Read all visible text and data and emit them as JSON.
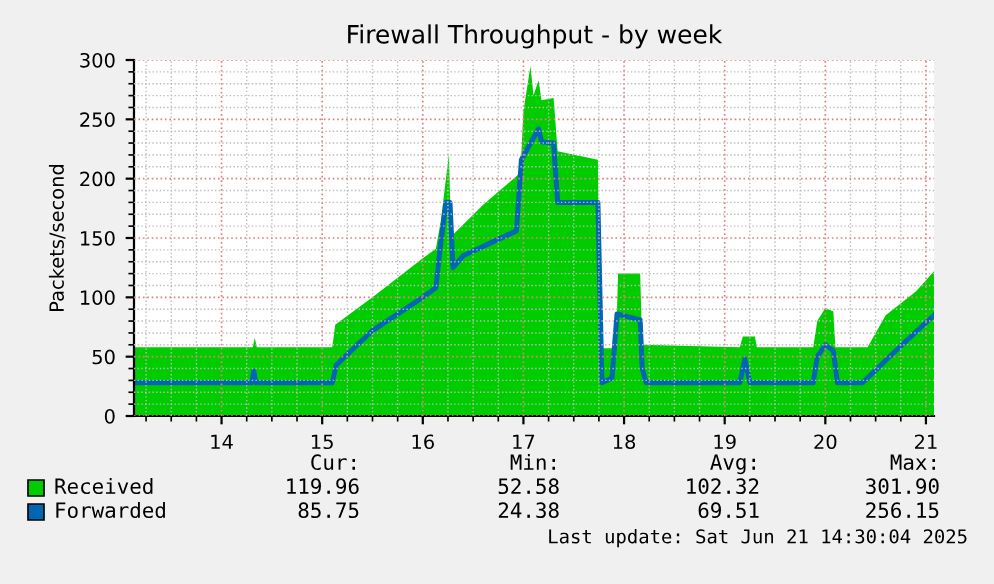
{
  "chart_data": {
    "type": "area",
    "title": "Firewall Throughput - by week",
    "ylabel": "Packets/second",
    "xlim": [
      13.13,
      21.08
    ],
    "xticks": [
      14,
      15,
      16,
      17,
      18,
      19,
      20,
      21
    ],
    "ylim": [
      0,
      300
    ],
    "yticks": [
      0,
      50,
      100,
      150,
      200,
      250,
      300
    ],
    "grid": true,
    "legend": "bottom",
    "series": [
      {
        "name": "Received",
        "color": "#00cc00",
        "x": [
          13.13,
          14.0,
          14.31,
          14.33,
          14.35,
          15.1,
          15.13,
          15.5,
          16.0,
          16.13,
          16.18,
          16.26,
          16.28,
          16.6,
          16.93,
          16.97,
          17.0,
          17.07,
          17.1,
          17.15,
          17.18,
          17.3,
          17.34,
          17.74,
          17.76,
          17.92,
          17.94,
          18.16,
          18.18,
          19.15,
          19.18,
          19.3,
          19.32,
          19.88,
          19.92,
          20.0,
          20.08,
          20.1,
          20.42,
          20.6,
          20.9,
          21.08
        ],
        "values": [
          58,
          58,
          58,
          66,
          58,
          58,
          77,
          100,
          133,
          141,
          165,
          221,
          151,
          178,
          202,
          205,
          257,
          295,
          270,
          283,
          266,
          268,
          223,
          216,
          57,
          57,
          120,
          120,
          60,
          58,
          67,
          67,
          58,
          58,
          80,
          91,
          88,
          58,
          58,
          85,
          105,
          122
        ]
      },
      {
        "name": "Forwarded",
        "color": "#0066b3",
        "type": "line",
        "x": [
          13.13,
          14.3,
          14.32,
          14.34,
          15.1,
          15.14,
          15.5,
          16.0,
          16.13,
          16.17,
          16.23,
          16.27,
          16.3,
          16.4,
          16.93,
          16.98,
          17.15,
          17.18,
          17.3,
          17.34,
          17.74,
          17.78,
          17.88,
          17.93,
          18.16,
          18.18,
          18.22,
          19.15,
          19.2,
          19.25,
          19.88,
          19.92,
          20.0,
          20.08,
          20.12,
          20.37,
          20.7,
          21.08
        ],
        "values": [
          28,
          28,
          38,
          28,
          28,
          43,
          72,
          100,
          108,
          140,
          180,
          180,
          125,
          135,
          156,
          216,
          242,
          231,
          230,
          180,
          180,
          28,
          32,
          86,
          81,
          40,
          28,
          28,
          48,
          28,
          28,
          50,
          60,
          55,
          28,
          28,
          55,
          85
        ]
      }
    ],
    "annotations": [
      "Cur:",
      "Min:",
      "Avg:",
      "Max:",
      "119.96",
      "52.58",
      "102.32",
      "301.90",
      "85.75",
      "24.38",
      "69.51",
      "256.15",
      "Last update: Sat Jun 21 14:30:04 2025"
    ]
  }
}
